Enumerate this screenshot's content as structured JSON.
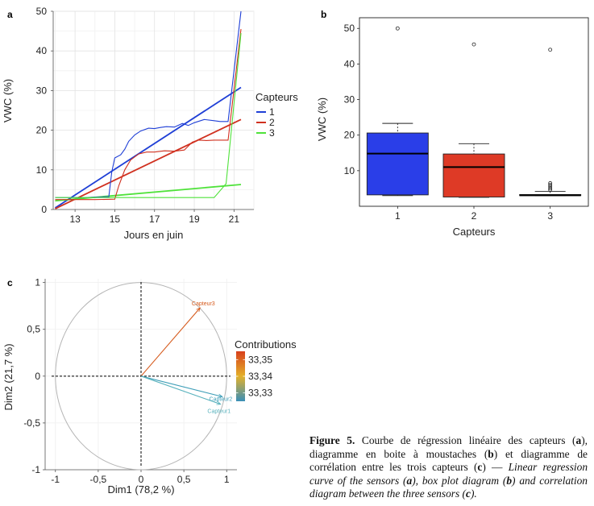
{
  "chart_data": [
    {
      "panel": "a",
      "type": "line",
      "xlabel": "Jours en juin",
      "ylabel": "VWC (%)",
      "xticks": [
        "13",
        "15",
        "17",
        "19",
        "21"
      ],
      "yticks": [
        "0",
        "10",
        "20",
        "30",
        "40",
        "50"
      ],
      "xlim": [
        11.9,
        22.0
      ],
      "ylim": [
        0,
        50
      ],
      "legend": {
        "title": "Capteurs",
        "position": "right",
        "entries": [
          "1",
          "2",
          "3"
        ]
      },
      "series": [
        {
          "name": "1",
          "color": "#1f3fd6",
          "x": [
            12,
            12.5,
            13,
            13.5,
            14,
            14.5,
            14.7,
            14.85,
            15.0,
            15.3,
            15.5,
            15.7,
            16.0,
            16.3,
            16.7,
            17.0,
            17.3,
            17.6,
            18.0,
            18.4,
            18.7,
            19.0,
            19.5,
            20.0,
            20.3,
            20.6,
            20.7,
            21.35
          ],
          "y": [
            3.0,
            3.0,
            3.0,
            3.0,
            3.1,
            3.2,
            3.2,
            9.5,
            13.0,
            13.8,
            15.2,
            17.2,
            18.8,
            19.8,
            20.5,
            20.4,
            20.7,
            20.9,
            20.8,
            21.7,
            21.2,
            21.9,
            22.7,
            22.4,
            22.2,
            22.2,
            22.2,
            50.0
          ],
          "regression": {
            "x": [
              12,
              21.35
            ],
            "y": [
              0.4,
              30.8
            ]
          }
        },
        {
          "name": "2",
          "color": "#d0301f",
          "x": [
            12,
            13,
            14,
            15,
            15.2,
            15.5,
            15.8,
            16.2,
            16.6,
            17.0,
            17.5,
            18.0,
            18.5,
            18.9,
            19.2,
            19.6,
            20.0,
            20.5,
            20.7,
            21.35
          ],
          "y": [
            2.5,
            2.5,
            2.5,
            2.6,
            6.0,
            10.0,
            12.5,
            14.0,
            14.5,
            14.5,
            14.8,
            14.7,
            15.0,
            17.0,
            17.5,
            17.4,
            17.5,
            17.5,
            17.5,
            45.5
          ],
          "regression": {
            "x": [
              12,
              21.35
            ],
            "y": [
              0.2,
              22.7
            ]
          }
        },
        {
          "name": "3",
          "color": "#4fe23a",
          "x": [
            12,
            14,
            16,
            18,
            19,
            20,
            20.6,
            21.35
          ],
          "y": [
            3.0,
            3.0,
            3.0,
            3.0,
            3.0,
            3.0,
            6.5,
            44.5
          ],
          "regression": {
            "x": [
              12,
              21.35
            ],
            "y": [
              2.2,
              6.3
            ]
          }
        }
      ]
    },
    {
      "panel": "b",
      "type": "box",
      "xlabel": "Capteurs",
      "ylabel": "VWC (%)",
      "categories": [
        "1",
        "2",
        "3"
      ],
      "ylim": [
        0,
        53
      ],
      "yticks": [
        "10",
        "20",
        "30",
        "40",
        "50"
      ],
      "boxes": [
        {
          "name": "1",
          "color": "#2a3ee8",
          "whisker_low": 3.0,
          "q1": 3.2,
          "median": 14.8,
          "q3": 20.6,
          "whisker_high": 23.3,
          "outliers": [
            50.0
          ]
        },
        {
          "name": "2",
          "color": "#de3a26",
          "whisker_low": 2.5,
          "q1": 2.6,
          "median": 11.0,
          "q3": 14.7,
          "whisker_high": 17.6,
          "outliers": [
            45.5
          ]
        },
        {
          "name": "3",
          "color": "#bdbdbd",
          "whisker_low": 3.0,
          "q1": 3.0,
          "median": 3.1,
          "q3": 3.3,
          "whisker_high": 4.2,
          "outliers": [
            4.6,
            5.0,
            5.5,
            6.0,
            6.5,
            44.0
          ]
        }
      ]
    },
    {
      "panel": "c",
      "type": "scatter",
      "subtype": "correlation-circle",
      "xlabel": "Dim1 (78,2 %)",
      "ylabel": "Dim2 (21,7 %)",
      "xlim": [
        -1.12,
        1.12
      ],
      "ylim": [
        -1.0,
        1.04
      ],
      "xticks": [
        "-1",
        "-0,5",
        "0",
        "0,5",
        "1"
      ],
      "yticks": [
        "1",
        "0,5",
        "0",
        "-0,5",
        "-1"
      ],
      "legend": {
        "title": "Contributions",
        "position": "right",
        "ticks": [
          "33,35",
          "33,34",
          "33,33"
        ],
        "range": [
          33.325,
          33.355
        ]
      },
      "vectors": [
        {
          "name": "Capteur3",
          "x": 0.69,
          "y": 0.73,
          "contribution": 33.35,
          "color": "#d65a1c"
        },
        {
          "name": "Capteur2",
          "x": 0.95,
          "y": -0.22,
          "contribution": 33.33,
          "color": "#3f9fb8"
        },
        {
          "name": "Capteur1",
          "x": 0.93,
          "y": -0.3,
          "contribution": 33.33,
          "color": "#59b2bd"
        }
      ]
    }
  ],
  "caption": {
    "label": "Figure 5.",
    "fr_1": " Courbe de régression linéaire des capteurs (",
    "fr_a": "a",
    "fr_2": "), diagramme en boite à moustaches (",
    "fr_b": "b",
    "fr_3": ") et diagramme de corrélation entre les trois capteurs (",
    "fr_c": "c",
    "fr_4": ") — ",
    "en_1": "Linear regression curve of the sensors (",
    "en_a": "a",
    "en_2": "), box plot diagram (",
    "en_b": "b",
    "en_3": ") and correlation diagram between the three sensors (",
    "en_c": "c",
    "en_4": ")."
  }
}
